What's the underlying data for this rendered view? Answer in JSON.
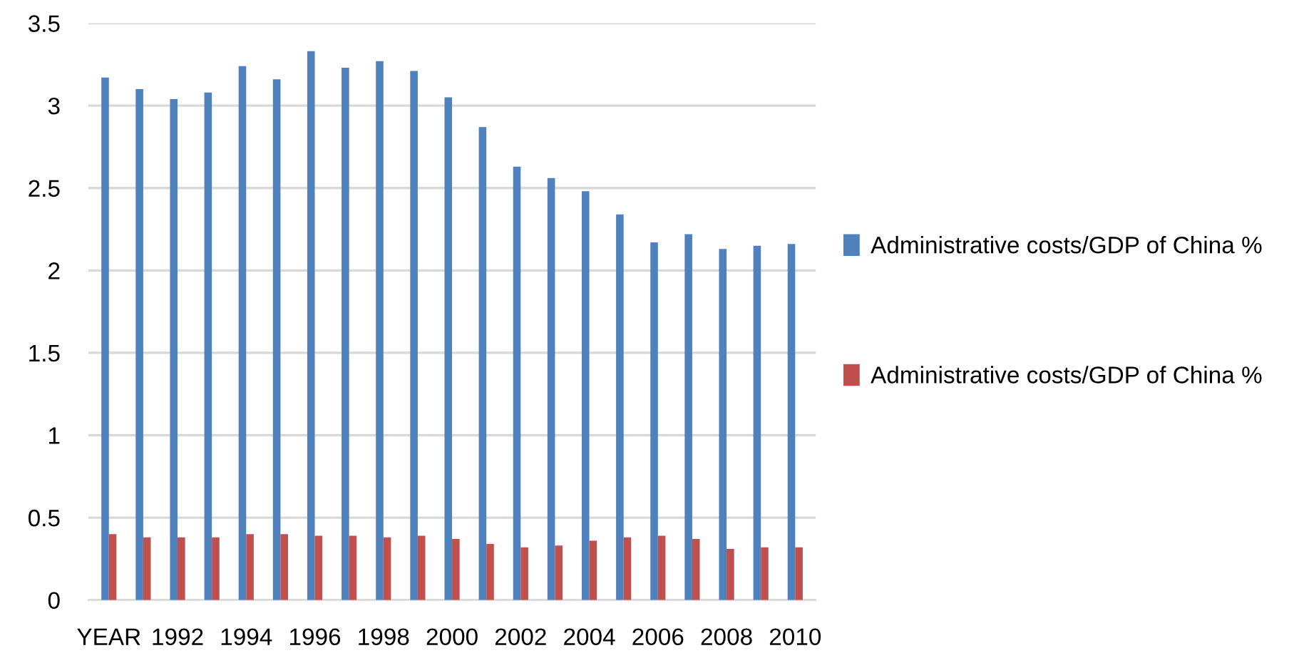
{
  "chart_data": {
    "type": "bar",
    "categories": [
      "YEAR",
      null,
      "1992",
      null,
      "1994",
      null,
      "1996",
      null,
      "1998",
      null,
      "2000",
      null,
      "2002",
      null,
      "2004",
      null,
      "2006",
      null,
      "2008",
      null,
      "2010"
    ],
    "series": [
      {
        "name": "Administrative costs/GDP of China %",
        "color": "#4f81bd",
        "values": [
          3.17,
          3.1,
          3.04,
          3.08,
          3.24,
          3.16,
          3.33,
          3.23,
          3.27,
          3.21,
          3.05,
          2.87,
          2.63,
          2.56,
          2.48,
          2.34,
          2.17,
          2.22,
          2.13,
          2.15,
          2.16
        ]
      },
      {
        "name": "Administrative costs/GDP of China %",
        "color": "#c0504d",
        "values": [
          0.4,
          0.38,
          0.38,
          0.38,
          0.4,
          0.4,
          0.39,
          0.39,
          0.38,
          0.39,
          0.37,
          0.34,
          0.32,
          0.33,
          0.36,
          0.38,
          0.39,
          0.37,
          0.31,
          0.32,
          0.32
        ]
      }
    ],
    "ylim": [
      0,
      3.5
    ],
    "yticks": [
      0,
      0.5,
      1,
      1.5,
      2,
      2.5,
      3,
      3.5
    ],
    "grid": "y",
    "legend": "right"
  }
}
